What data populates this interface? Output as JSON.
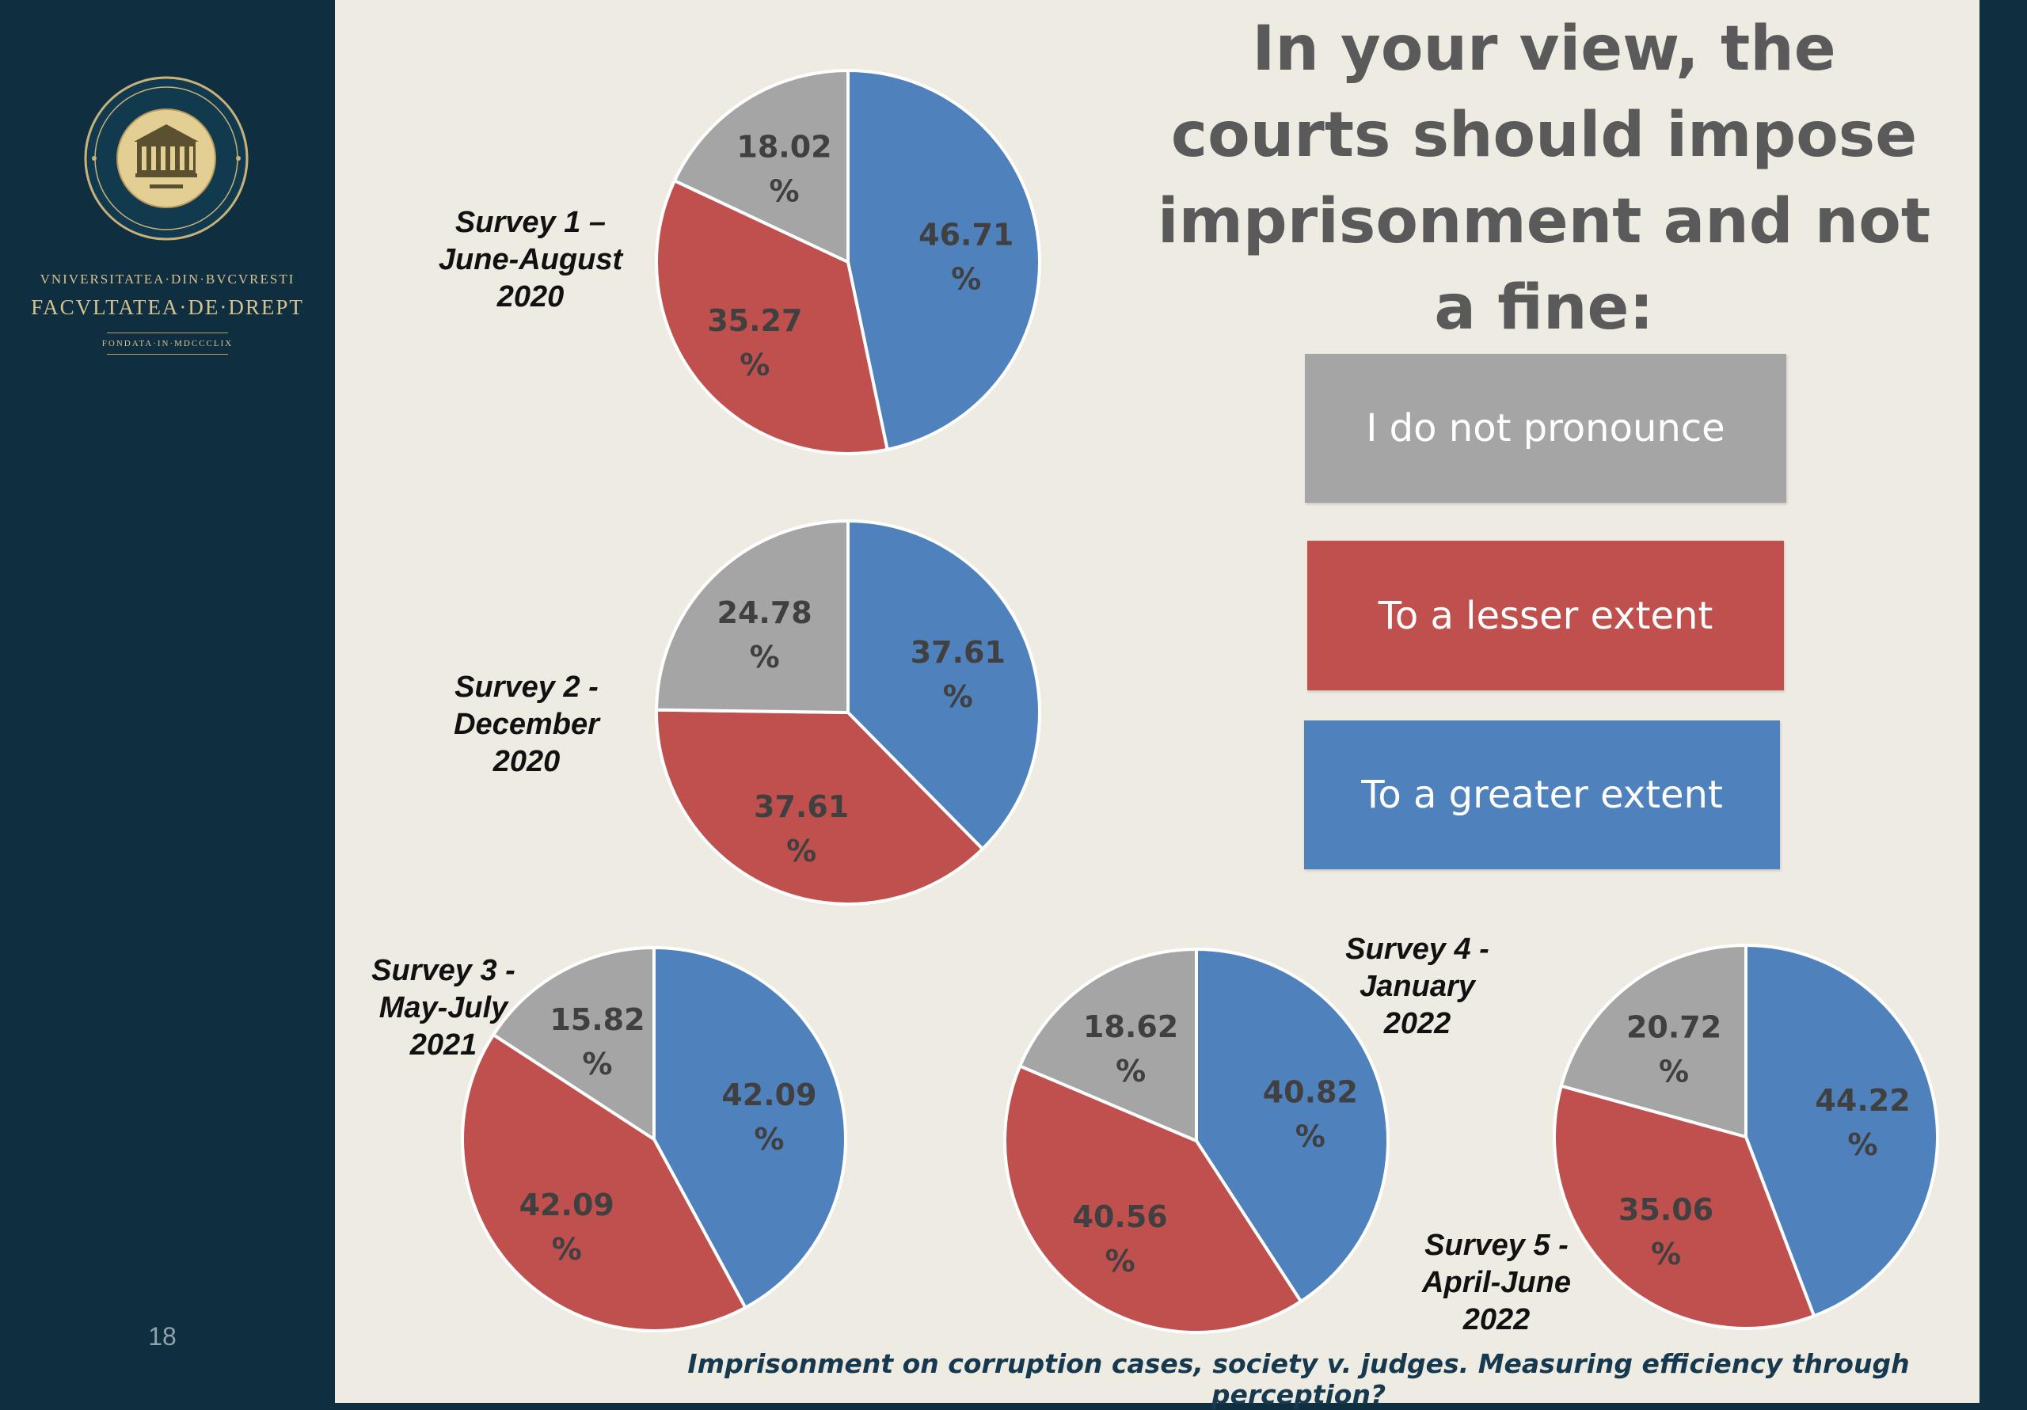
{
  "sidebar": {
    "university": "VNIVERSITATEA·DIN·BVCVRESTI",
    "faculty": "FACVLTATEA·DE·DREPT",
    "founded": "FONDATA·IN·MDCCCLIX",
    "slide_number": "18",
    "colors": {
      "background": "#0f2f40",
      "gold": "#d6c28f"
    }
  },
  "question": "In your view, the courts should impose imprisonment and not a fine:",
  "legend": [
    {
      "label": "I do not pronounce",
      "color": "#a5a5a5"
    },
    {
      "label": "To a lesser extent",
      "color": "#c0504d"
    },
    {
      "label": "To a greater extent",
      "color": "#4f81bd"
    }
  ],
  "footer_caption": "Imprisonment on corruption cases, society v. judges. Measuring efficiency through perception?",
  "chart_data": [
    {
      "type": "pie",
      "title": "Survey 1 –\nJune-August\n2020",
      "categories": [
        "To a greater extent",
        "To a lesser extent",
        "I do not pronounce"
      ],
      "values": [
        46.71,
        35.27,
        18.02
      ],
      "unit": "%"
    },
    {
      "type": "pie",
      "title": "Survey 2  -\nDecember\n2020",
      "categories": [
        "To a greater extent",
        "To a lesser extent",
        "I do not pronounce"
      ],
      "values": [
        37.61,
        37.61,
        24.78
      ],
      "unit": "%"
    },
    {
      "type": "pie",
      "title": "Survey 3  -\nMay-July\n2021",
      "categories": [
        "To a greater extent",
        "To a lesser extent",
        "I do not pronounce"
      ],
      "values": [
        42.09,
        42.09,
        15.82
      ],
      "unit": "%"
    },
    {
      "type": "pie",
      "title": "Survey 4  -\nJanuary\n2022",
      "categories": [
        "To a greater extent",
        "To a lesser extent",
        "I do not pronounce"
      ],
      "values": [
        40.82,
        40.56,
        18.62
      ],
      "unit": "%"
    },
    {
      "type": "pie",
      "title": "Survey 5  -\nApril-June\n2022",
      "categories": [
        "To a greater extent",
        "To a lesser extent",
        "I do not pronounce"
      ],
      "values": [
        44.22,
        35.06,
        20.72
      ],
      "unit": "%"
    }
  ]
}
